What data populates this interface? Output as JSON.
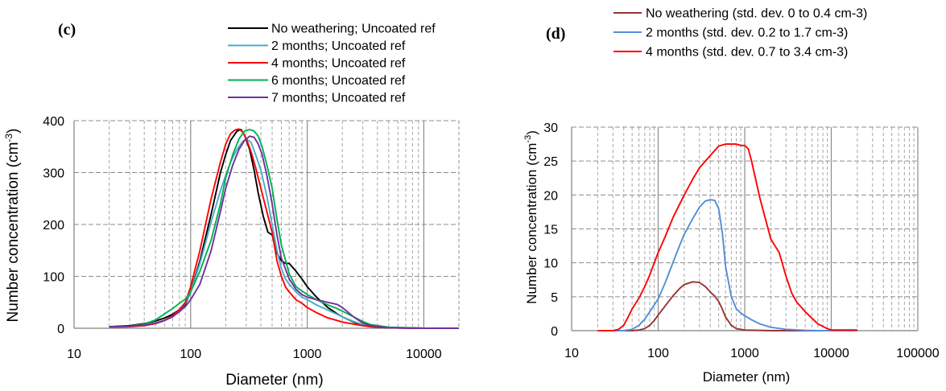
{
  "chart_data": [
    {
      "panel_label": "(c)",
      "type": "line",
      "x_scale": "log",
      "xlim": [
        10,
        20000
      ],
      "ylim": [
        0,
        400
      ],
      "x_ticks": [
        "10",
        "100",
        "1000",
        "10000"
      ],
      "y_ticks": [
        "0",
        "100",
        "200",
        "300",
        "400"
      ],
      "xlabel": "Diameter (nm)",
      "ylabel_main": "Number concentration (cm",
      "ylabel_sup": "-3",
      "ylabel_tail": ")",
      "grid": true,
      "legend_position": "top-center",
      "series": [
        {
          "name": "No weathering; Uncoated ref",
          "color": "#000000",
          "x": [
            20,
            30,
            40,
            50,
            60,
            70,
            80,
            90,
            100,
            120,
            150,
            180,
            200,
            220,
            250,
            270,
            290,
            320,
            350,
            380,
            420,
            460,
            500,
            550,
            600,
            650,
            700,
            800,
            900,
            1000,
            1200,
            1500,
            1800,
            2000,
            2500,
            3000,
            3500,
            5000,
            10000,
            20000
          ],
          "y": [
            3,
            5,
            9,
            14,
            20,
            27,
            36,
            46,
            70,
            130,
            220,
            300,
            335,
            362,
            380,
            383,
            372,
            345,
            305,
            260,
            215,
            185,
            180,
            145,
            130,
            125,
            125,
            110,
            95,
            80,
            60,
            40,
            28,
            22,
            12,
            6,
            3,
            1,
            0,
            0
          ]
        },
        {
          "name": "2 months; Uncoated ref",
          "color": "#4bacc6",
          "x": [
            20,
            30,
            40,
            50,
            60,
            70,
            80,
            90,
            100,
            120,
            150,
            180,
            200,
            220,
            250,
            280,
            300,
            330,
            360,
            400,
            450,
            500,
            550,
            600,
            650,
            700,
            800,
            900,
            1000,
            1200,
            1500,
            1800,
            2000,
            2500,
            3000,
            3500,
            5000,
            10000,
            20000
          ],
          "y": [
            2,
            3,
            6,
            10,
            16,
            24,
            36,
            48,
            70,
            125,
            205,
            265,
            295,
            320,
            345,
            360,
            365,
            358,
            335,
            305,
            255,
            200,
            150,
            115,
            95,
            85,
            70,
            60,
            55,
            45,
            35,
            27,
            22,
            13,
            7,
            4,
            1,
            0,
            0
          ]
        },
        {
          "name": "4 months; Uncoated ref",
          "color": "#ff0000",
          "x": [
            20,
            30,
            40,
            50,
            60,
            70,
            80,
            90,
            100,
            120,
            150,
            180,
            200,
            220,
            240,
            260,
            280,
            300,
            330,
            360,
            400,
            450,
            500,
            550,
            600,
            650,
            700,
            800,
            900,
            1000,
            1200,
            1500,
            1800,
            2000,
            2500,
            3000,
            3500,
            5000,
            10000,
            20000
          ],
          "y": [
            2,
            3,
            5,
            9,
            15,
            24,
            36,
            50,
            80,
            150,
            250,
            320,
            355,
            375,
            382,
            384,
            378,
            365,
            340,
            310,
            270,
            225,
            185,
            130,
            100,
            80,
            70,
            55,
            48,
            40,
            30,
            20,
            15,
            12,
            8,
            5,
            3,
            1,
            0,
            0
          ]
        },
        {
          "name": "6 months; Uncoated ref",
          "color": "#00b050",
          "x": [
            20,
            30,
            40,
            50,
            60,
            70,
            80,
            90,
            100,
            120,
            150,
            180,
            200,
            230,
            260,
            290,
            320,
            350,
            380,
            410,
            450,
            500,
            550,
            600,
            700,
            800,
            900,
            1000,
            1200,
            1500,
            1800,
            2000,
            2500,
            3000,
            3500,
            5000,
            10000,
            20000
          ],
          "y": [
            2,
            4,
            8,
            16,
            28,
            38,
            48,
            56,
            70,
            110,
            170,
            240,
            290,
            335,
            365,
            380,
            383,
            380,
            370,
            350,
            315,
            270,
            210,
            160,
            105,
            80,
            72,
            65,
            55,
            45,
            38,
            33,
            22,
            13,
            7,
            2,
            0,
            0
          ]
        },
        {
          "name": "7 months; Uncoated ref",
          "color": "#7030a0",
          "x": [
            20,
            30,
            40,
            50,
            60,
            70,
            80,
            90,
            100,
            120,
            150,
            180,
            200,
            230,
            260,
            290,
            320,
            350,
            380,
            410,
            450,
            500,
            550,
            600,
            700,
            800,
            900,
            1000,
            1200,
            1500,
            1800,
            2000,
            2500,
            3000,
            3500,
            5000,
            10000,
            20000
          ],
          "y": [
            3,
            4,
            6,
            10,
            15,
            22,
            32,
            42,
            55,
            85,
            150,
            225,
            270,
            315,
            345,
            362,
            370,
            368,
            355,
            335,
            295,
            240,
            180,
            135,
            95,
            75,
            65,
            60,
            55,
            50,
            46,
            40,
            22,
            10,
            5,
            1,
            0,
            0
          ]
        }
      ]
    },
    {
      "panel_label": "(d)",
      "type": "line",
      "x_scale": "log",
      "xlim": [
        10,
        100000
      ],
      "ylim": [
        0,
        30
      ],
      "x_ticks": [
        "10",
        "100",
        "1000",
        "10000",
        "100000"
      ],
      "y_ticks": [
        "0",
        "5",
        "10",
        "15",
        "20",
        "25",
        "30"
      ],
      "xlabel": "Diameter (nm)",
      "ylabel_main": "Number concentration (cm",
      "ylabel_sup": "-3",
      "ylabel_tail": ")",
      "grid": true,
      "legend_position": "top-left",
      "series": [
        {
          "name": "No weathering (std. dev. 0 to 0.4 cm-3)",
          "color": "#943634",
          "x": [
            20,
            30,
            40,
            50,
            60,
            70,
            80,
            90,
            100,
            120,
            150,
            180,
            200,
            250,
            300,
            350,
            400,
            450,
            500,
            550,
            600,
            700,
            800,
            1000,
            2000,
            5000,
            10000,
            20000
          ],
          "y": [
            0,
            0,
            0,
            0,
            0.1,
            0.3,
            0.8,
            1.5,
            2.3,
            3.6,
            5.2,
            6.3,
            6.8,
            7.2,
            7.1,
            6.5,
            5.7,
            5.1,
            4.3,
            3.2,
            2.0,
            0.8,
            0.3,
            0.1,
            0,
            0,
            0,
            0
          ]
        },
        {
          "name": "2 months (std. dev. 0.2 to 1.7 cm-3)",
          "color": "#558ed5",
          "x": [
            20,
            30,
            40,
            50,
            60,
            70,
            80,
            90,
            100,
            120,
            150,
            180,
            200,
            250,
            300,
            350,
            400,
            450,
            500,
            550,
            600,
            700,
            800,
            900,
            1000,
            1200,
            1500,
            2000,
            3000,
            5000,
            7000,
            10000,
            20000
          ],
          "y": [
            0,
            0,
            0,
            0.2,
            0.8,
            1.7,
            2.8,
            3.8,
            4.7,
            7.0,
            10.2,
            12.8,
            14.2,
            16.5,
            18.2,
            19.1,
            19.3,
            19.2,
            18.0,
            14.5,
            9.5,
            5.0,
            3.2,
            2.6,
            2.2,
            1.6,
            1.0,
            0.5,
            0.2,
            0.05,
            0,
            0,
            0
          ]
        },
        {
          "name": "4 months (std. dev. 0.7 to 3.4 cm-3)",
          "color": "#ff0000",
          "x": [
            20,
            30,
            35,
            40,
            45,
            50,
            60,
            70,
            80,
            90,
            100,
            120,
            150,
            200,
            250,
            300,
            400,
            500,
            600,
            700,
            800,
            900,
            1000,
            1100,
            1200,
            1500,
            2000,
            2500,
            3000,
            3500,
            4000,
            5000,
            7000,
            9000,
            10000,
            20000
          ],
          "y": [
            0,
            0,
            0.2,
            0.8,
            2.0,
            3.2,
            4.8,
            6.5,
            8.2,
            10.0,
            11.5,
            13.8,
            16.8,
            20.0,
            22.3,
            24.0,
            25.8,
            27.2,
            27.5,
            27.5,
            27.5,
            27.3,
            27.3,
            26.8,
            25.0,
            19.5,
            13.5,
            11.5,
            8.0,
            5.5,
            4.2,
            2.8,
            1.0,
            0.3,
            0.1,
            0.1
          ]
        }
      ]
    }
  ]
}
